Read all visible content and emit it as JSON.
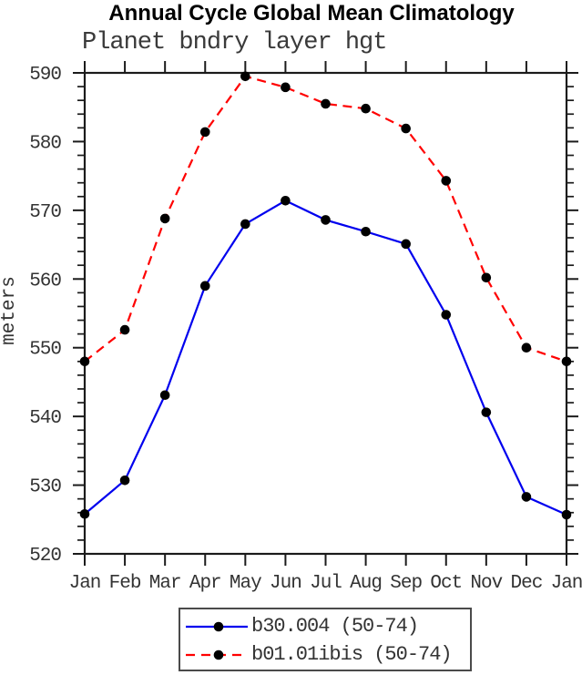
{
  "chart": {
    "title": "Annual Cycle Global Mean Climatology",
    "subtitle": "Planet bndry layer hgt",
    "ylabel": "meters"
  },
  "chart_data": {
    "type": "line",
    "title": "Annual Cycle Global Mean Climatology",
    "subtitle": "Planet bndry layer hgt",
    "xlabel": "",
    "ylabel": "meters",
    "categories": [
      "Jan",
      "Feb",
      "Mar",
      "Apr",
      "May",
      "Jun",
      "Jul",
      "Aug",
      "Sep",
      "Oct",
      "Nov",
      "Dec",
      "Jan"
    ],
    "series": [
      {
        "name": "b30.004 (50-74)",
        "color": "#0000ee",
        "line_style": "solid",
        "marker": "filled-circle",
        "values": [
          525.8,
          530.7,
          543.1,
          559.0,
          568.0,
          571.4,
          568.6,
          566.9,
          565.1,
          554.8,
          540.6,
          528.3,
          525.7
        ]
      },
      {
        "name": "b01.01ibis (50-74)",
        "color": "#ff0000",
        "line_style": "dashed",
        "marker": "filled-circle",
        "values": [
          548.0,
          552.6,
          568.8,
          581.4,
          589.5,
          587.9,
          585.5,
          584.8,
          581.9,
          574.3,
          560.2,
          550.0,
          548.0
        ]
      }
    ],
    "ylim": [
      520,
      590
    ],
    "ytick_step_major": 10,
    "ytick_step_minor": 2,
    "grid": false,
    "legend_position": "bottom-center",
    "marker_color": "#000000",
    "axis_color": "#1b1b1b"
  }
}
